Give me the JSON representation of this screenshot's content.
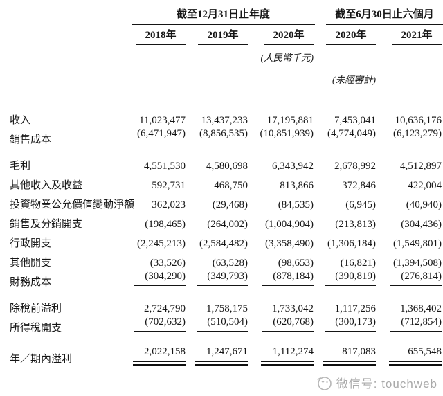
{
  "table": {
    "col_groups": [
      {
        "label": "截至12月31日止年度",
        "years": [
          "2018年",
          "2019年",
          "2020年"
        ]
      },
      {
        "label": "截至6月30日止六個月",
        "years": [
          "2020年",
          "2021年"
        ]
      }
    ],
    "unit_note": "(人民幣千元)",
    "audit_note": "(未經審計)",
    "rows": [
      {
        "label": "收入",
        "bold": true,
        "values": [
          "11,023,477",
          "13,437,233",
          "17,195,881",
          "7,453,041",
          "10,636,176"
        ]
      },
      {
        "label": "銷售成本",
        "rule": "single",
        "values": [
          "(6,471,947)",
          "(8,856,535)",
          "(10,851,939)",
          "(4,774,049)",
          "(6,123,279)"
        ]
      },
      {
        "label": "毛利",
        "bold": true,
        "gap_before": true,
        "values": [
          "4,551,530",
          "4,580,698",
          "6,343,942",
          "2,678,992",
          "4,512,897"
        ]
      },
      {
        "label": "其他收入及收益",
        "values": [
          "592,731",
          "468,750",
          "813,866",
          "372,846",
          "422,004"
        ]
      },
      {
        "label": "投資物業公允價值變動淨額",
        "values": [
          "362,023",
          "(29,468)",
          "(84,535)",
          "(6,945)",
          "(40,940)"
        ]
      },
      {
        "label": "銷售及分銷開支",
        "values": [
          "(198,465)",
          "(264,002)",
          "(1,004,904)",
          "(213,813)",
          "(304,436)"
        ]
      },
      {
        "label": "行政開支",
        "values": [
          "(2,245,213)",
          "(2,584,482)",
          "(3,358,490)",
          "(1,306,184)",
          "(1,549,801)"
        ]
      },
      {
        "label": "其他開支",
        "values": [
          "(33,526)",
          "(63,528)",
          "(98,653)",
          "(16,821)",
          "(1,394,508)"
        ]
      },
      {
        "label": "財務成本",
        "rule": "single",
        "values": [
          "(304,290)",
          "(349,793)",
          "(878,184)",
          "(390,819)",
          "(276,814)"
        ]
      },
      {
        "label": "除稅前溢利",
        "bold": true,
        "gap_before": true,
        "values": [
          "2,724,790",
          "1,758,175",
          "1,733,042",
          "1,117,256",
          "1,368,402"
        ]
      },
      {
        "label": "所得稅開支",
        "rule": "single",
        "values": [
          "(702,632)",
          "(510,504)",
          "(620,768)",
          "(300,173)",
          "(712,854)"
        ]
      },
      {
        "label": "年／期內溢利",
        "bold": true,
        "gap_before": true,
        "rule": "double",
        "values": [
          "2,022,158",
          "1,247,671",
          "1,112,274",
          "817,083",
          "655,548"
        ]
      }
    ]
  },
  "watermark": {
    "label": "微信号: touchweb",
    "icon": "mascot-circle-icon",
    "color": "#a9a9a9"
  }
}
